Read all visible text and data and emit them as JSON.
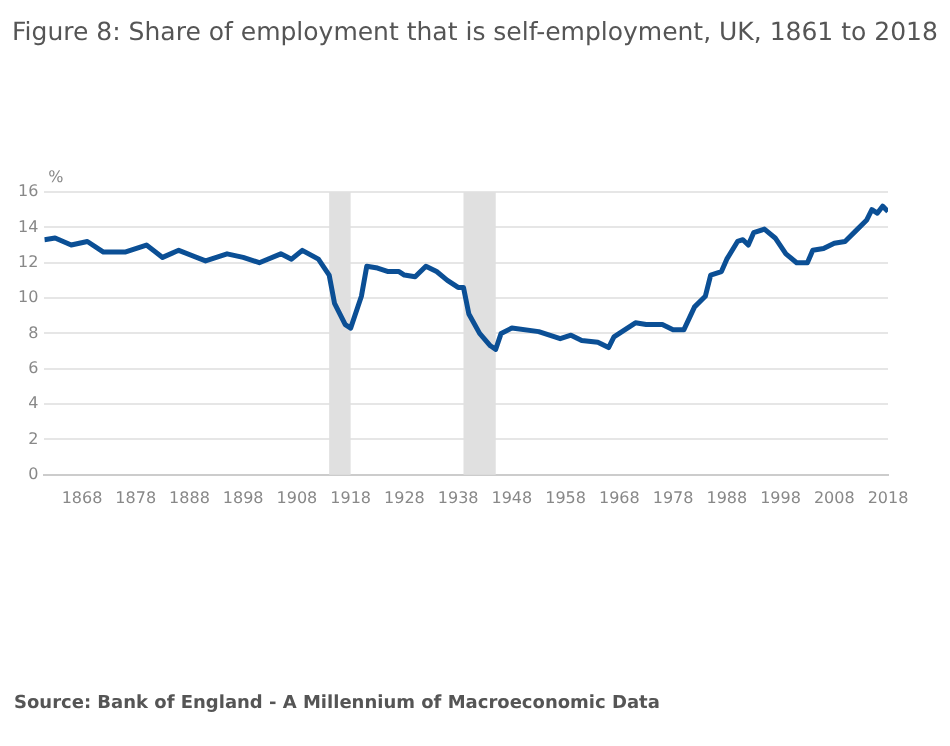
{
  "chart_data": {
    "type": "line",
    "title": "Figure 8: Share of employment that is self-employment, UK, 1861 to 2018",
    "ylabel": "%",
    "annotations": [
      "Source: Bank of England - A Millennium of Macroeconomic Data"
    ],
    "x": [
      1861,
      1863,
      1866,
      1869,
      1872,
      1876,
      1880,
      1883,
      1886,
      1891,
      1895,
      1898,
      1901,
      1905,
      1907,
      1909,
      1912,
      1914,
      1915,
      1917,
      1918,
      1920,
      1921,
      1923,
      1925,
      1927,
      1928,
      1930,
      1932,
      1934,
      1936,
      1938,
      1939,
      1940,
      1942,
      1944,
      1945,
      1946,
      1948,
      1953,
      1957,
      1959,
      1961,
      1964,
      1966,
      1967,
      1969,
      1971,
      1973,
      1976,
      1978,
      1980,
      1982,
      1984,
      1985,
      1987,
      1988,
      1990,
      1991,
      1992,
      1993,
      1995,
      1997,
      1999,
      2001,
      2003,
      2004,
      2006,
      2008,
      2010,
      2012,
      2014,
      2015,
      2016,
      2017,
      2018
    ],
    "series": [
      {
        "color": "#0b4f95",
        "values": [
          13.3,
          13.4,
          13.0,
          13.2,
          12.6,
          12.6,
          13.0,
          12.3,
          12.7,
          12.1,
          12.5,
          12.3,
          12.0,
          12.5,
          12.2,
          12.7,
          12.2,
          11.3,
          9.7,
          8.5,
          8.3,
          10.1,
          11.8,
          11.7,
          11.5,
          11.5,
          11.3,
          11.2,
          11.8,
          11.5,
          11.0,
          10.6,
          10.6,
          9.1,
          8.0,
          7.3,
          7.1,
          8.0,
          8.3,
          8.1,
          7.7,
          7.9,
          7.6,
          7.5,
          7.2,
          7.8,
          8.2,
          8.6,
          8.5,
          8.5,
          8.2,
          8.2,
          9.5,
          10.1,
          11.3,
          11.5,
          12.2,
          13.2,
          13.3,
          13.0,
          13.7,
          13.9,
          13.4,
          12.5,
          12.0,
          12.0,
          12.7,
          12.8,
          13.1,
          13.2,
          13.8,
          14.4,
          15.0,
          14.8,
          15.2,
          14.9
        ]
      }
    ],
    "xlim": [
      1861,
      2018
    ],
    "xticks": [
      1868,
      1878,
      1888,
      1898,
      1908,
      1918,
      1928,
      1938,
      1948,
      1958,
      1968,
      1978,
      1988,
      1998,
      2008,
      2018
    ],
    "ylim": [
      0,
      16
    ],
    "yticks": [
      0,
      2,
      4,
      6,
      8,
      10,
      12,
      14,
      16
    ],
    "bands": [
      {
        "axis": "x",
        "from": 1914,
        "to": 1918,
        "color": "#e0e0e0"
      },
      {
        "axis": "x",
        "from": 1939,
        "to": 1945,
        "color": "#e0e0e0"
      }
    ],
    "grid": "y",
    "legend": false,
    "marker": "none",
    "line_style": "solid"
  }
}
